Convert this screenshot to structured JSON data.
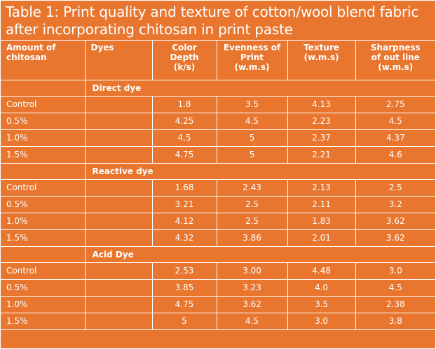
{
  "title": {
    "line1": "Table 1: Print quality and texture of cotton/wool blend fabric",
    "line2": "after incorporating chitosan in print paste"
  },
  "colors": {
    "background": "#e8762f",
    "text": "#ffffff",
    "grid": "#ffffff"
  },
  "headers": [
    {
      "lines": [
        "Amount of",
        "chitosan"
      ]
    },
    {
      "lines": [
        "Dyes"
      ]
    },
    {
      "lines": [
        "Color",
        "Depth",
        "(k/s)"
      ]
    },
    {
      "lines": [
        "Evenness of",
        "Print",
        "(w.m.s)"
      ]
    },
    {
      "lines": [
        "Texture",
        "(w.m.s)"
      ]
    },
    {
      "lines": [
        "Sharpness",
        "of out line",
        "(w.m.s)"
      ]
    }
  ],
  "sections": [
    {
      "name": "Direct dye",
      "rows": [
        {
          "amount": "Control",
          "color_depth": "1.8",
          "evenness": "3.5",
          "texture": "4.13",
          "sharpness": "2.75"
        },
        {
          "amount": "0.5%",
          "color_depth": "4.25",
          "evenness": "4.5",
          "texture": "2.23",
          "sharpness": "4.5"
        },
        {
          "amount": "1.0%",
          "color_depth": "4.5",
          "evenness": "5",
          "texture": "2.37",
          "sharpness": "4.37"
        },
        {
          "amount": "1.5%",
          "color_depth": "4.75",
          "evenness": "5",
          "texture": "2.21",
          "sharpness": "4.6"
        }
      ]
    },
    {
      "name": "Reactive dye",
      "rows": [
        {
          "amount": "Control",
          "color_depth": "1.68",
          "evenness": "2.43",
          "texture": "2.13",
          "sharpness": "2.5"
        },
        {
          "amount": "0.5%",
          "color_depth": "3.21",
          "evenness": "2.5",
          "texture": "2.11",
          "sharpness": "3.2"
        },
        {
          "amount": "1.0%",
          "color_depth": "4.12",
          "evenness": "2.5",
          "texture": "1.83",
          "sharpness": "3.62"
        },
        {
          "amount": "1.5%",
          "color_depth": "4.32",
          "evenness": "3.86",
          "texture": "2.01",
          "sharpness": "3.62"
        }
      ]
    },
    {
      "name": "Acid Dye",
      "rows": [
        {
          "amount": "Control",
          "color_depth": "2.53",
          "evenness": "3.00",
          "texture": "4.48",
          "sharpness": "3.0"
        },
        {
          "amount": "0.5%",
          "color_depth": "3.85",
          "evenness": "3.23",
          "texture": "4.0",
          "sharpness": "4.5"
        },
        {
          "amount": "1.0%",
          "color_depth": "4.75",
          "evenness": "3.62",
          "texture": "3.5",
          "sharpness": "2.38"
        },
        {
          "amount": "1.5%",
          "color_depth": "5",
          "evenness": "4.5",
          "texture": "3.0",
          "sharpness": "3.8"
        }
      ]
    }
  ]
}
